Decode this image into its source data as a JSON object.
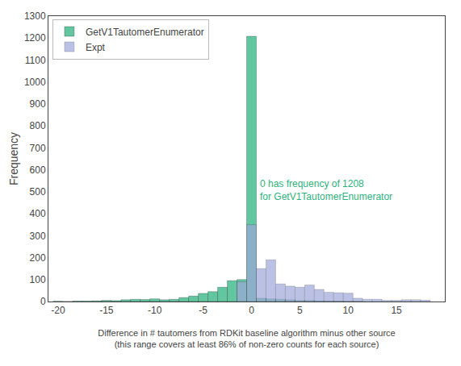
{
  "chart_data": {
    "type": "bar",
    "xlabel": "Difference in # tautomers from RDKit baseline algorithm minus other source\n(this range covers at least 86% of non-zero counts for each source)",
    "ylabel": "Frequency",
    "annotations": [
      {
        "text": "0 has frequency of 1208\nfor GetV1TautomerEnumerator",
        "x": 0.7,
        "y": 570,
        "color": "#2db27d"
      }
    ],
    "series": [
      {
        "name": "GetV1TautomerEnumerator",
        "color": "#62c6a0",
        "x": [
          -20,
          -19,
          -18,
          -17,
          -16,
          -15,
          -14,
          -13,
          -12,
          -11,
          -10,
          -9,
          -8,
          -7,
          -6,
          -5,
          -4,
          -3,
          -2,
          -1,
          0,
          1,
          2,
          3,
          4,
          5,
          6,
          7,
          8,
          9,
          10,
          11
        ],
        "values": [
          1,
          0,
          2,
          2,
          3,
          5,
          4,
          8,
          10,
          9,
          12,
          8,
          10,
          18,
          25,
          37,
          45,
          65,
          95,
          100,
          1208,
          15,
          12,
          10,
          8,
          5,
          5,
          3,
          2,
          2,
          1,
          1
        ]
      },
      {
        "name": "Expt",
        "color": "#9fa8da",
        "x": [
          -1,
          0,
          1,
          2,
          3,
          4,
          5,
          6,
          7,
          8,
          9,
          10,
          11,
          12,
          13,
          14,
          15,
          16,
          17,
          18
        ],
        "values": [
          90,
          350,
          150,
          190,
          80,
          70,
          65,
          75,
          55,
          42,
          40,
          38,
          15,
          10,
          10,
          5,
          5,
          8,
          8,
          6
        ]
      }
    ],
    "xlim": [
      -21,
      20
    ],
    "xticks": [
      -20,
      -15,
      -10,
      -5,
      0,
      5,
      10,
      15
    ],
    "ylim": [
      0,
      1300
    ],
    "yticks": [
      0,
      100,
      200,
      300,
      400,
      500,
      600,
      700,
      800,
      900,
      1000,
      1100,
      1200,
      1300
    ],
    "legend": "upper left",
    "grid": false
  }
}
